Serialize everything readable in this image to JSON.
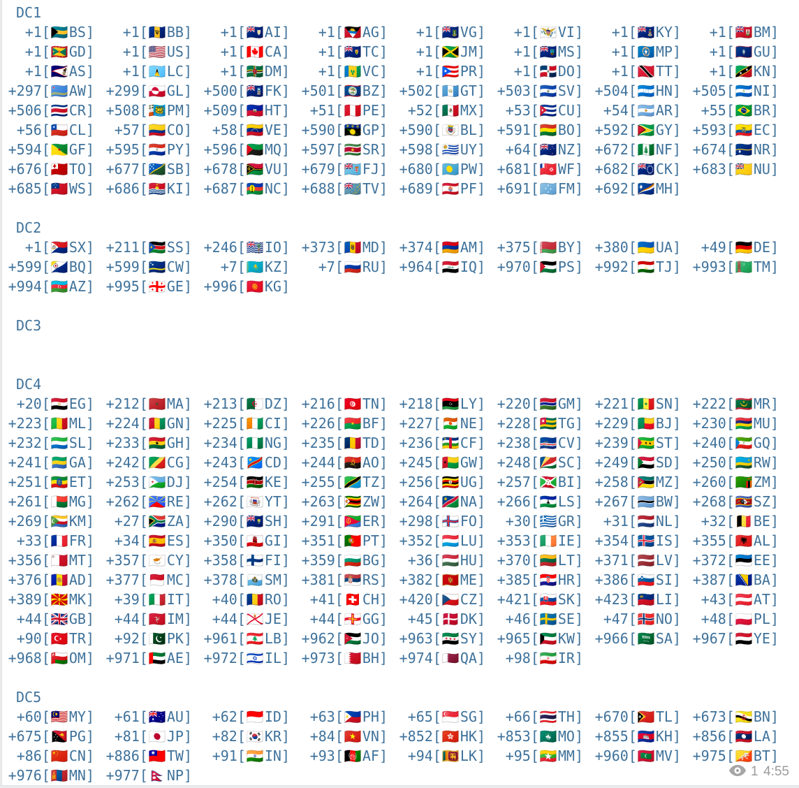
{
  "app": "chat-message-dial-codes",
  "colors": {
    "text": "#3f729b",
    "meta_gray": "#9c9c9c",
    "background": "#ffffff",
    "chat_edge": "#e9ebec"
  },
  "message": {
    "entry_format": "{code}[{flag}{cc}]",
    "flags_note": "flag emoji derived from the two-letter country code (regional indicator symbols)",
    "sections": [
      {
        "title": "DC1",
        "entries": [
          [
            "+1",
            "BS"
          ],
          [
            "+1",
            "BB"
          ],
          [
            "+1",
            "AI"
          ],
          [
            "+1",
            "AG"
          ],
          [
            "+1",
            "VG"
          ],
          [
            "+1",
            "VI"
          ],
          [
            "+1",
            "KY"
          ],
          [
            "+1",
            "BM"
          ],
          [
            "+1",
            "GD"
          ],
          [
            "+1",
            "US"
          ],
          [
            "+1",
            "CA"
          ],
          [
            "+1",
            "TC"
          ],
          [
            "+1",
            "JM"
          ],
          [
            "+1",
            "MS"
          ],
          [
            "+1",
            "MP"
          ],
          [
            "+1",
            "GU"
          ],
          [
            "+1",
            "AS"
          ],
          [
            "+1",
            "LC"
          ],
          [
            "+1",
            "DM"
          ],
          [
            "+1",
            "VC"
          ],
          [
            "+1",
            "PR"
          ],
          [
            "+1",
            "DO"
          ],
          [
            "+1",
            "TT"
          ],
          [
            "+1",
            "KN"
          ],
          [
            "+297",
            "AW"
          ],
          [
            "+299",
            "GL"
          ],
          [
            "+500",
            "FK"
          ],
          [
            "+501",
            "BZ"
          ],
          [
            "+502",
            "GT"
          ],
          [
            "+503",
            "SV"
          ],
          [
            "+504",
            "HN"
          ],
          [
            "+505",
            "NI"
          ],
          [
            "+506",
            "CR"
          ],
          [
            "+508",
            "PM"
          ],
          [
            "+509",
            "HT"
          ],
          [
            "+51",
            "PE"
          ],
          [
            "+52",
            "MX"
          ],
          [
            "+53",
            "CU"
          ],
          [
            "+54",
            "AR"
          ],
          [
            "+55",
            "BR"
          ],
          [
            "+56",
            "CL"
          ],
          [
            "+57",
            "CO"
          ],
          [
            "+58",
            "VE"
          ],
          [
            "+590",
            "GP"
          ],
          [
            "+590",
            "BL"
          ],
          [
            "+591",
            "BO"
          ],
          [
            "+592",
            "GY"
          ],
          [
            "+593",
            "EC"
          ],
          [
            "+594",
            "GF"
          ],
          [
            "+595",
            "PY"
          ],
          [
            "+596",
            "MQ"
          ],
          [
            "+597",
            "SR"
          ],
          [
            "+598",
            "UY"
          ],
          [
            "+64",
            "NZ"
          ],
          [
            "+672",
            "NF"
          ],
          [
            "+674",
            "NR"
          ],
          [
            "+676",
            "TO"
          ],
          [
            "+677",
            "SB"
          ],
          [
            "+678",
            "VU"
          ],
          [
            "+679",
            "FJ"
          ],
          [
            "+680",
            "PW"
          ],
          [
            "+681",
            "WF"
          ],
          [
            "+682",
            "CK"
          ],
          [
            "+683",
            "NU"
          ],
          [
            "+685",
            "WS"
          ],
          [
            "+686",
            "KI"
          ],
          [
            "+687",
            "NC"
          ],
          [
            "+688",
            "TV"
          ],
          [
            "+689",
            "PF"
          ],
          [
            "+691",
            "FM"
          ],
          [
            "+692",
            "MH"
          ]
        ]
      },
      {
        "title": "DC2",
        "entries": [
          [
            "+1",
            "SX"
          ],
          [
            "+211",
            "SS"
          ],
          [
            "+246",
            "IO"
          ],
          [
            "+373",
            "MD"
          ],
          [
            "+374",
            "AM"
          ],
          [
            "+375",
            "BY"
          ],
          [
            "+380",
            "UA"
          ],
          [
            "+49",
            "DE"
          ],
          [
            "+599",
            "BQ"
          ],
          [
            "+599",
            "CW"
          ],
          [
            "+7",
            "KZ"
          ],
          [
            "+7",
            "RU"
          ],
          [
            "+964",
            "IQ"
          ],
          [
            "+970",
            "PS"
          ],
          [
            "+992",
            "TJ"
          ],
          [
            "+993",
            "TM"
          ],
          [
            "+994",
            "AZ"
          ],
          [
            "+995",
            "GE"
          ],
          [
            "+996",
            "KG"
          ]
        ]
      },
      {
        "title": "DC3",
        "entries": []
      },
      {
        "title": "DC4",
        "entries": [
          [
            "+20",
            "EG"
          ],
          [
            "+212",
            "MA"
          ],
          [
            "+213",
            "DZ"
          ],
          [
            "+216",
            "TN"
          ],
          [
            "+218",
            "LY"
          ],
          [
            "+220",
            "GM"
          ],
          [
            "+221",
            "SN"
          ],
          [
            "+222",
            "MR"
          ],
          [
            "+223",
            "ML"
          ],
          [
            "+224",
            "GN"
          ],
          [
            "+225",
            "CI"
          ],
          [
            "+226",
            "BF"
          ],
          [
            "+227",
            "NE"
          ],
          [
            "+228",
            "TG"
          ],
          [
            "+229",
            "BJ"
          ],
          [
            "+230",
            "MU"
          ],
          [
            "+232",
            "SL"
          ],
          [
            "+233",
            "GH"
          ],
          [
            "+234",
            "NG"
          ],
          [
            "+235",
            "TD"
          ],
          [
            "+236",
            "CF"
          ],
          [
            "+238",
            "CV"
          ],
          [
            "+239",
            "ST"
          ],
          [
            "+240",
            "GQ"
          ],
          [
            "+241",
            "GA"
          ],
          [
            "+242",
            "CG"
          ],
          [
            "+243",
            "CD"
          ],
          [
            "+244",
            "AO"
          ],
          [
            "+245",
            "GW"
          ],
          [
            "+248",
            "SC"
          ],
          [
            "+249",
            "SD"
          ],
          [
            "+250",
            "RW"
          ],
          [
            "+251",
            "ET"
          ],
          [
            "+253",
            "DJ"
          ],
          [
            "+254",
            "KE"
          ],
          [
            "+255",
            "TZ"
          ],
          [
            "+256",
            "UG"
          ],
          [
            "+257",
            "BI"
          ],
          [
            "+258",
            "MZ"
          ],
          [
            "+260",
            "ZM"
          ],
          [
            "+261",
            "MG"
          ],
          [
            "+262",
            "RE"
          ],
          [
            "+262",
            "YT"
          ],
          [
            "+263",
            "ZW"
          ],
          [
            "+264",
            "NA"
          ],
          [
            "+266",
            "LS"
          ],
          [
            "+267",
            "BW"
          ],
          [
            "+268",
            "SZ"
          ],
          [
            "+269",
            "KM"
          ],
          [
            "+27",
            "ZA"
          ],
          [
            "+290",
            "SH"
          ],
          [
            "+291",
            "ER"
          ],
          [
            "+298",
            "FO"
          ],
          [
            "+30",
            "GR"
          ],
          [
            "+31",
            "NL"
          ],
          [
            "+32",
            "BE"
          ],
          [
            "+33",
            "FR"
          ],
          [
            "+34",
            "ES"
          ],
          [
            "+350",
            "GI"
          ],
          [
            "+351",
            "PT"
          ],
          [
            "+352",
            "LU"
          ],
          [
            "+353",
            "IE"
          ],
          [
            "+354",
            "IS"
          ],
          [
            "+355",
            "AL"
          ],
          [
            "+356",
            "MT"
          ],
          [
            "+357",
            "CY"
          ],
          [
            "+358",
            "FI"
          ],
          [
            "+359",
            "BG"
          ],
          [
            "+36",
            "HU"
          ],
          [
            "+370",
            "LT"
          ],
          [
            "+371",
            "LV"
          ],
          [
            "+372",
            "EE"
          ],
          [
            "+376",
            "AD"
          ],
          [
            "+377",
            "MC"
          ],
          [
            "+378",
            "SM"
          ],
          [
            "+381",
            "RS"
          ],
          [
            "+382",
            "ME"
          ],
          [
            "+385",
            "HR"
          ],
          [
            "+386",
            "SI"
          ],
          [
            "+387",
            "BA"
          ],
          [
            "+389",
            "MK"
          ],
          [
            "+39",
            "IT"
          ],
          [
            "+40",
            "RO"
          ],
          [
            "+41",
            "CH"
          ],
          [
            "+420",
            "CZ"
          ],
          [
            "+421",
            "SK"
          ],
          [
            "+423",
            "LI"
          ],
          [
            "+43",
            "AT"
          ],
          [
            "+44",
            "GB"
          ],
          [
            "+44",
            "IM"
          ],
          [
            "+44",
            "JE"
          ],
          [
            "+44",
            "GG"
          ],
          [
            "+45",
            "DK"
          ],
          [
            "+46",
            "SE"
          ],
          [
            "+47",
            "NO"
          ],
          [
            "+48",
            "PL"
          ],
          [
            "+90",
            "TR"
          ],
          [
            "+92",
            "PK"
          ],
          [
            "+961",
            "LB"
          ],
          [
            "+962",
            "JO"
          ],
          [
            "+963",
            "SY"
          ],
          [
            "+965",
            "KW"
          ],
          [
            "+966",
            "SA"
          ],
          [
            "+967",
            "YE"
          ],
          [
            "+968",
            "OM"
          ],
          [
            "+971",
            "AE"
          ],
          [
            "+972",
            "IL"
          ],
          [
            "+973",
            "BH"
          ],
          [
            "+974",
            "QA"
          ],
          [
            "+98",
            "IR"
          ]
        ]
      },
      {
        "title": "DC5",
        "entries": [
          [
            "+60",
            "MY"
          ],
          [
            "+61",
            "AU"
          ],
          [
            "+62",
            "ID"
          ],
          [
            "+63",
            "PH"
          ],
          [
            "+65",
            "SG"
          ],
          [
            "+66",
            "TH"
          ],
          [
            "+670",
            "TL"
          ],
          [
            "+673",
            "BN"
          ],
          [
            "+675",
            "PG"
          ],
          [
            "+81",
            "JP"
          ],
          [
            "+82",
            "KR"
          ],
          [
            "+84",
            "VN"
          ],
          [
            "+852",
            "HK"
          ],
          [
            "+853",
            "MO"
          ],
          [
            "+855",
            "KH"
          ],
          [
            "+856",
            "LA"
          ],
          [
            "+86",
            "CN"
          ],
          [
            "+886",
            "TW"
          ],
          [
            "+91",
            "IN"
          ],
          [
            "+93",
            "AF"
          ],
          [
            "+94",
            "LK"
          ],
          [
            "+95",
            "MM"
          ],
          [
            "+960",
            "MV"
          ],
          [
            "+975",
            "BT"
          ],
          [
            "+976",
            "MN"
          ],
          [
            "+977",
            "NP"
          ]
        ]
      }
    ],
    "footer": {
      "views_icon": "eye-icon",
      "views": "1",
      "time": "4:55"
    }
  }
}
